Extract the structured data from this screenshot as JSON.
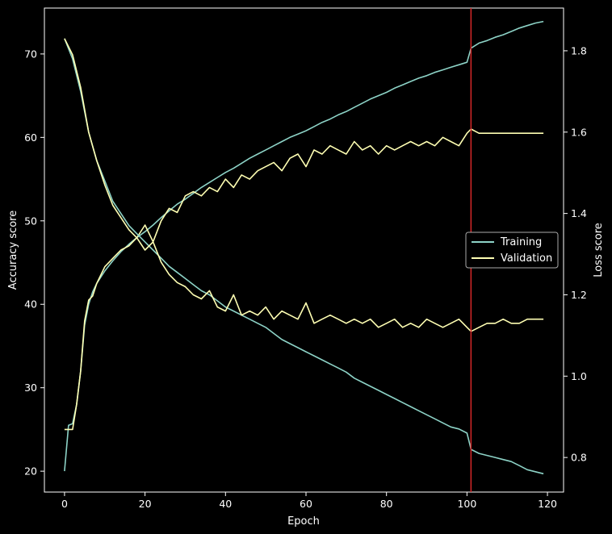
{
  "chart_data": {
    "type": "line",
    "xlabel": "Epoch",
    "ylabel_left": "Accuracy score",
    "ylabel_right": "Loss score",
    "xlim": [
      -5,
      124
    ],
    "ylim_left": [
      17.5,
      75.5
    ],
    "ylim_right": [
      0.715,
      1.905
    ],
    "xticks": [
      0,
      20,
      40,
      60,
      80,
      100,
      120
    ],
    "yticks_left": [
      20,
      30,
      40,
      50,
      60,
      70
    ],
    "yticks_right": [
      0.8,
      1.0,
      1.2,
      1.4,
      1.6,
      1.8
    ],
    "grid": false,
    "legend_position": "center-right",
    "vline": {
      "x": 101,
      "color": "#d62728"
    },
    "colors": {
      "training": "#8dd3c7",
      "validation": "#ffffb3",
      "background": "#000000",
      "axes": "#ffffff"
    },
    "accuracy": {
      "x": [
        0,
        1,
        2,
        3,
        4,
        5,
        6,
        7,
        8,
        10,
        12,
        14,
        16,
        18,
        20,
        22,
        24,
        26,
        28,
        30,
        32,
        34,
        36,
        38,
        40,
        42,
        44,
        46,
        48,
        50,
        52,
        54,
        56,
        58,
        60,
        62,
        64,
        66,
        68,
        70,
        72,
        74,
        76,
        78,
        80,
        82,
        84,
        86,
        88,
        90,
        92,
        94,
        96,
        98,
        100,
        101,
        103,
        105,
        107,
        109,
        111,
        113,
        115,
        117,
        119
      ],
      "training": [
        20.0,
        25.5,
        25.7,
        28.0,
        32.0,
        37.5,
        40.0,
        41.5,
        42.5,
        44.0,
        45.2,
        46.3,
        47.2,
        48.0,
        48.7,
        49.5,
        50.4,
        51.2,
        52.0,
        52.6,
        53.3,
        54.0,
        54.6,
        55.2,
        55.8,
        56.3,
        56.9,
        57.5,
        58.0,
        58.5,
        59.0,
        59.5,
        60.0,
        60.4,
        60.8,
        61.3,
        61.8,
        62.2,
        62.7,
        63.1,
        63.6,
        64.1,
        64.6,
        65.0,
        65.4,
        65.9,
        66.3,
        66.7,
        67.1,
        67.4,
        67.8,
        68.1,
        68.4,
        68.7,
        69.0,
        70.7,
        71.3,
        71.6,
        72.0,
        72.3,
        72.7,
        73.1,
        73.4,
        73.7,
        73.9
      ],
      "validation": [
        25.0,
        25.0,
        25.0,
        28.0,
        32.0,
        38.0,
        40.5,
        41.0,
        42.5,
        44.5,
        45.5,
        46.5,
        47.0,
        48.0,
        49.5,
        47.5,
        50.0,
        51.5,
        51.0,
        53.0,
        53.5,
        53.0,
        54.0,
        53.5,
        55.0,
        54.0,
        55.5,
        55.0,
        56.0,
        56.5,
        57.0,
        56.0,
        57.5,
        58.0,
        56.5,
        58.5,
        58.0,
        59.0,
        58.5,
        58.0,
        59.5,
        58.5,
        59.0,
        58.0,
        59.0,
        58.5,
        59.0,
        59.5,
        59.0,
        59.5,
        59.0,
        60.0,
        59.5,
        59.0,
        60.5,
        61.0,
        60.5,
        60.5,
        60.5,
        60.5,
        60.5,
        60.5,
        60.5,
        60.5,
        60.5
      ]
    },
    "loss": {
      "x": [
        0,
        2,
        4,
        6,
        8,
        10,
        12,
        14,
        16,
        18,
        20,
        22,
        24,
        26,
        28,
        30,
        32,
        34,
        36,
        38,
        40,
        42,
        44,
        46,
        48,
        50,
        52,
        54,
        56,
        58,
        60,
        62,
        64,
        66,
        68,
        70,
        72,
        74,
        76,
        78,
        80,
        82,
        84,
        86,
        88,
        90,
        92,
        94,
        96,
        98,
        100,
        101,
        103,
        105,
        107,
        109,
        111,
        113,
        115,
        117,
        119
      ],
      "training": [
        1.83,
        1.78,
        1.7,
        1.6,
        1.53,
        1.48,
        1.43,
        1.4,
        1.37,
        1.35,
        1.33,
        1.31,
        1.29,
        1.27,
        1.255,
        1.24,
        1.225,
        1.21,
        1.2,
        1.185,
        1.17,
        1.16,
        1.15,
        1.14,
        1.13,
        1.12,
        1.105,
        1.09,
        1.08,
        1.07,
        1.06,
        1.05,
        1.04,
        1.03,
        1.02,
        1.01,
        0.995,
        0.985,
        0.975,
        0.965,
        0.955,
        0.945,
        0.935,
        0.925,
        0.915,
        0.905,
        0.895,
        0.885,
        0.875,
        0.87,
        0.86,
        0.82,
        0.81,
        0.805,
        0.8,
        0.795,
        0.79,
        0.78,
        0.77,
        0.765,
        0.76
      ],
      "validation": [
        1.83,
        1.79,
        1.71,
        1.6,
        1.53,
        1.47,
        1.42,
        1.39,
        1.36,
        1.34,
        1.31,
        1.33,
        1.28,
        1.25,
        1.23,
        1.22,
        1.2,
        1.19,
        1.21,
        1.17,
        1.16,
        1.2,
        1.15,
        1.16,
        1.15,
        1.17,
        1.14,
        1.16,
        1.15,
        1.14,
        1.18,
        1.13,
        1.14,
        1.15,
        1.14,
        1.13,
        1.14,
        1.13,
        1.14,
        1.12,
        1.13,
        1.14,
        1.12,
        1.13,
        1.12,
        1.14,
        1.13,
        1.12,
        1.13,
        1.14,
        1.12,
        1.11,
        1.12,
        1.13,
        1.13,
        1.14,
        1.13,
        1.13,
        1.14,
        1.14,
        1.14
      ]
    },
    "legend": {
      "entries": [
        {
          "label": "Training",
          "color": "#8dd3c7"
        },
        {
          "label": "Validation",
          "color": "#ffffb3"
        }
      ]
    }
  }
}
